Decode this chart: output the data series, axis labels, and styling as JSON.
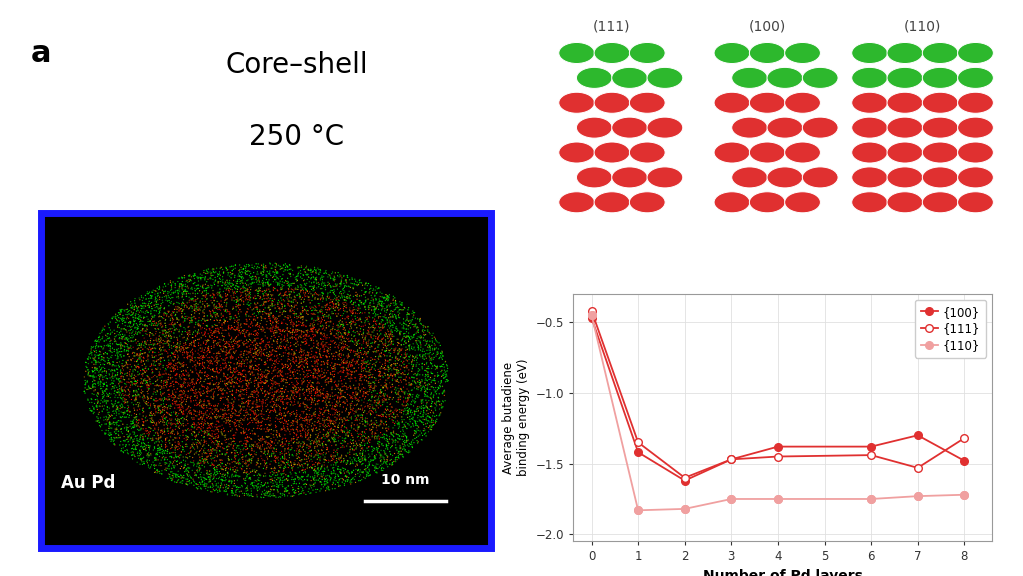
{
  "x_100": [
    0,
    1,
    2,
    3,
    4,
    6,
    7,
    8
  ],
  "x_111": [
    0,
    1,
    2,
    3,
    4,
    6,
    7,
    8
  ],
  "x_110": [
    0,
    1,
    2,
    3,
    4,
    6,
    7,
    8
  ],
  "y_100_vals": [
    -0.47,
    -1.42,
    -1.62,
    -1.47,
    -1.38,
    -1.38,
    -1.3,
    -1.48
  ],
  "y_111_vals": [
    -0.42,
    -1.35,
    -1.6,
    -1.47,
    -1.45,
    -1.44,
    -1.53,
    -1.32
  ],
  "y_110_vals": [
    -0.45,
    -1.83,
    -1.82,
    -1.75,
    -1.75,
    -1.75,
    -1.73,
    -1.72
  ],
  "xlabel": "Number of Pd layers",
  "ylabel": "Average butadiene\nbinding energy (eV)",
  "ylim": [
    -2.05,
    -0.3
  ],
  "yticks": [
    -2.0,
    -1.5,
    -1.0,
    -0.5
  ],
  "xticks": [
    0,
    1,
    2,
    3,
    4,
    5,
    6,
    7,
    8
  ],
  "color_dark": "#e03030",
  "color_light": "#f0a0a0",
  "legend_100": "{100}",
  "legend_111": "{111}",
  "legend_110": "{110}",
  "label_111": "(111)",
  "label_100": "(100)",
  "label_110": "(110)",
  "text_core_shell": "Core–shell",
  "text_temp": "250 °C",
  "text_label_a": "a",
  "text_au_pd": "Au Pd",
  "text_scale": "10 nm",
  "border_color": "#1a1aff",
  "green_color": "#2db82d",
  "red_color": "#e03030"
}
